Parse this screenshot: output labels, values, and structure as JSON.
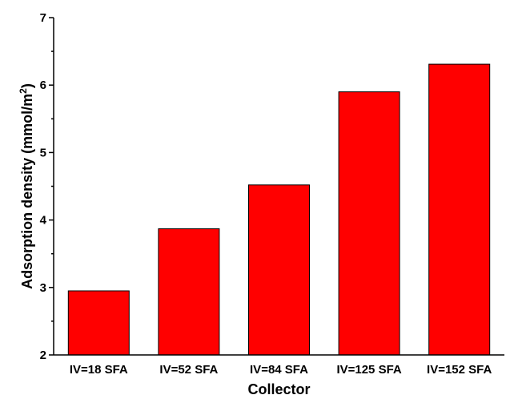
{
  "chart_data": {
    "type": "bar",
    "title": "",
    "xlabel": "Collector",
    "ylabel": {
      "main": "Adsorption density (mmol/m",
      "superscript": "2",
      "close": ")"
    },
    "categories": [
      "IV=18 SFA",
      "IV=52 SFA",
      "IV=84 SFA",
      "IV=125 SFA",
      "IV=152 SFA"
    ],
    "values": [
      2.95,
      3.87,
      4.52,
      5.9,
      6.31
    ],
    "ylim": [
      2,
      7
    ],
    "yticks": [
      "2",
      "3",
      "4",
      "5",
      "6",
      "7"
    ],
    "bar_color": "#ff0000",
    "edge_color": "#000000",
    "grid": false,
    "legend": "none"
  }
}
